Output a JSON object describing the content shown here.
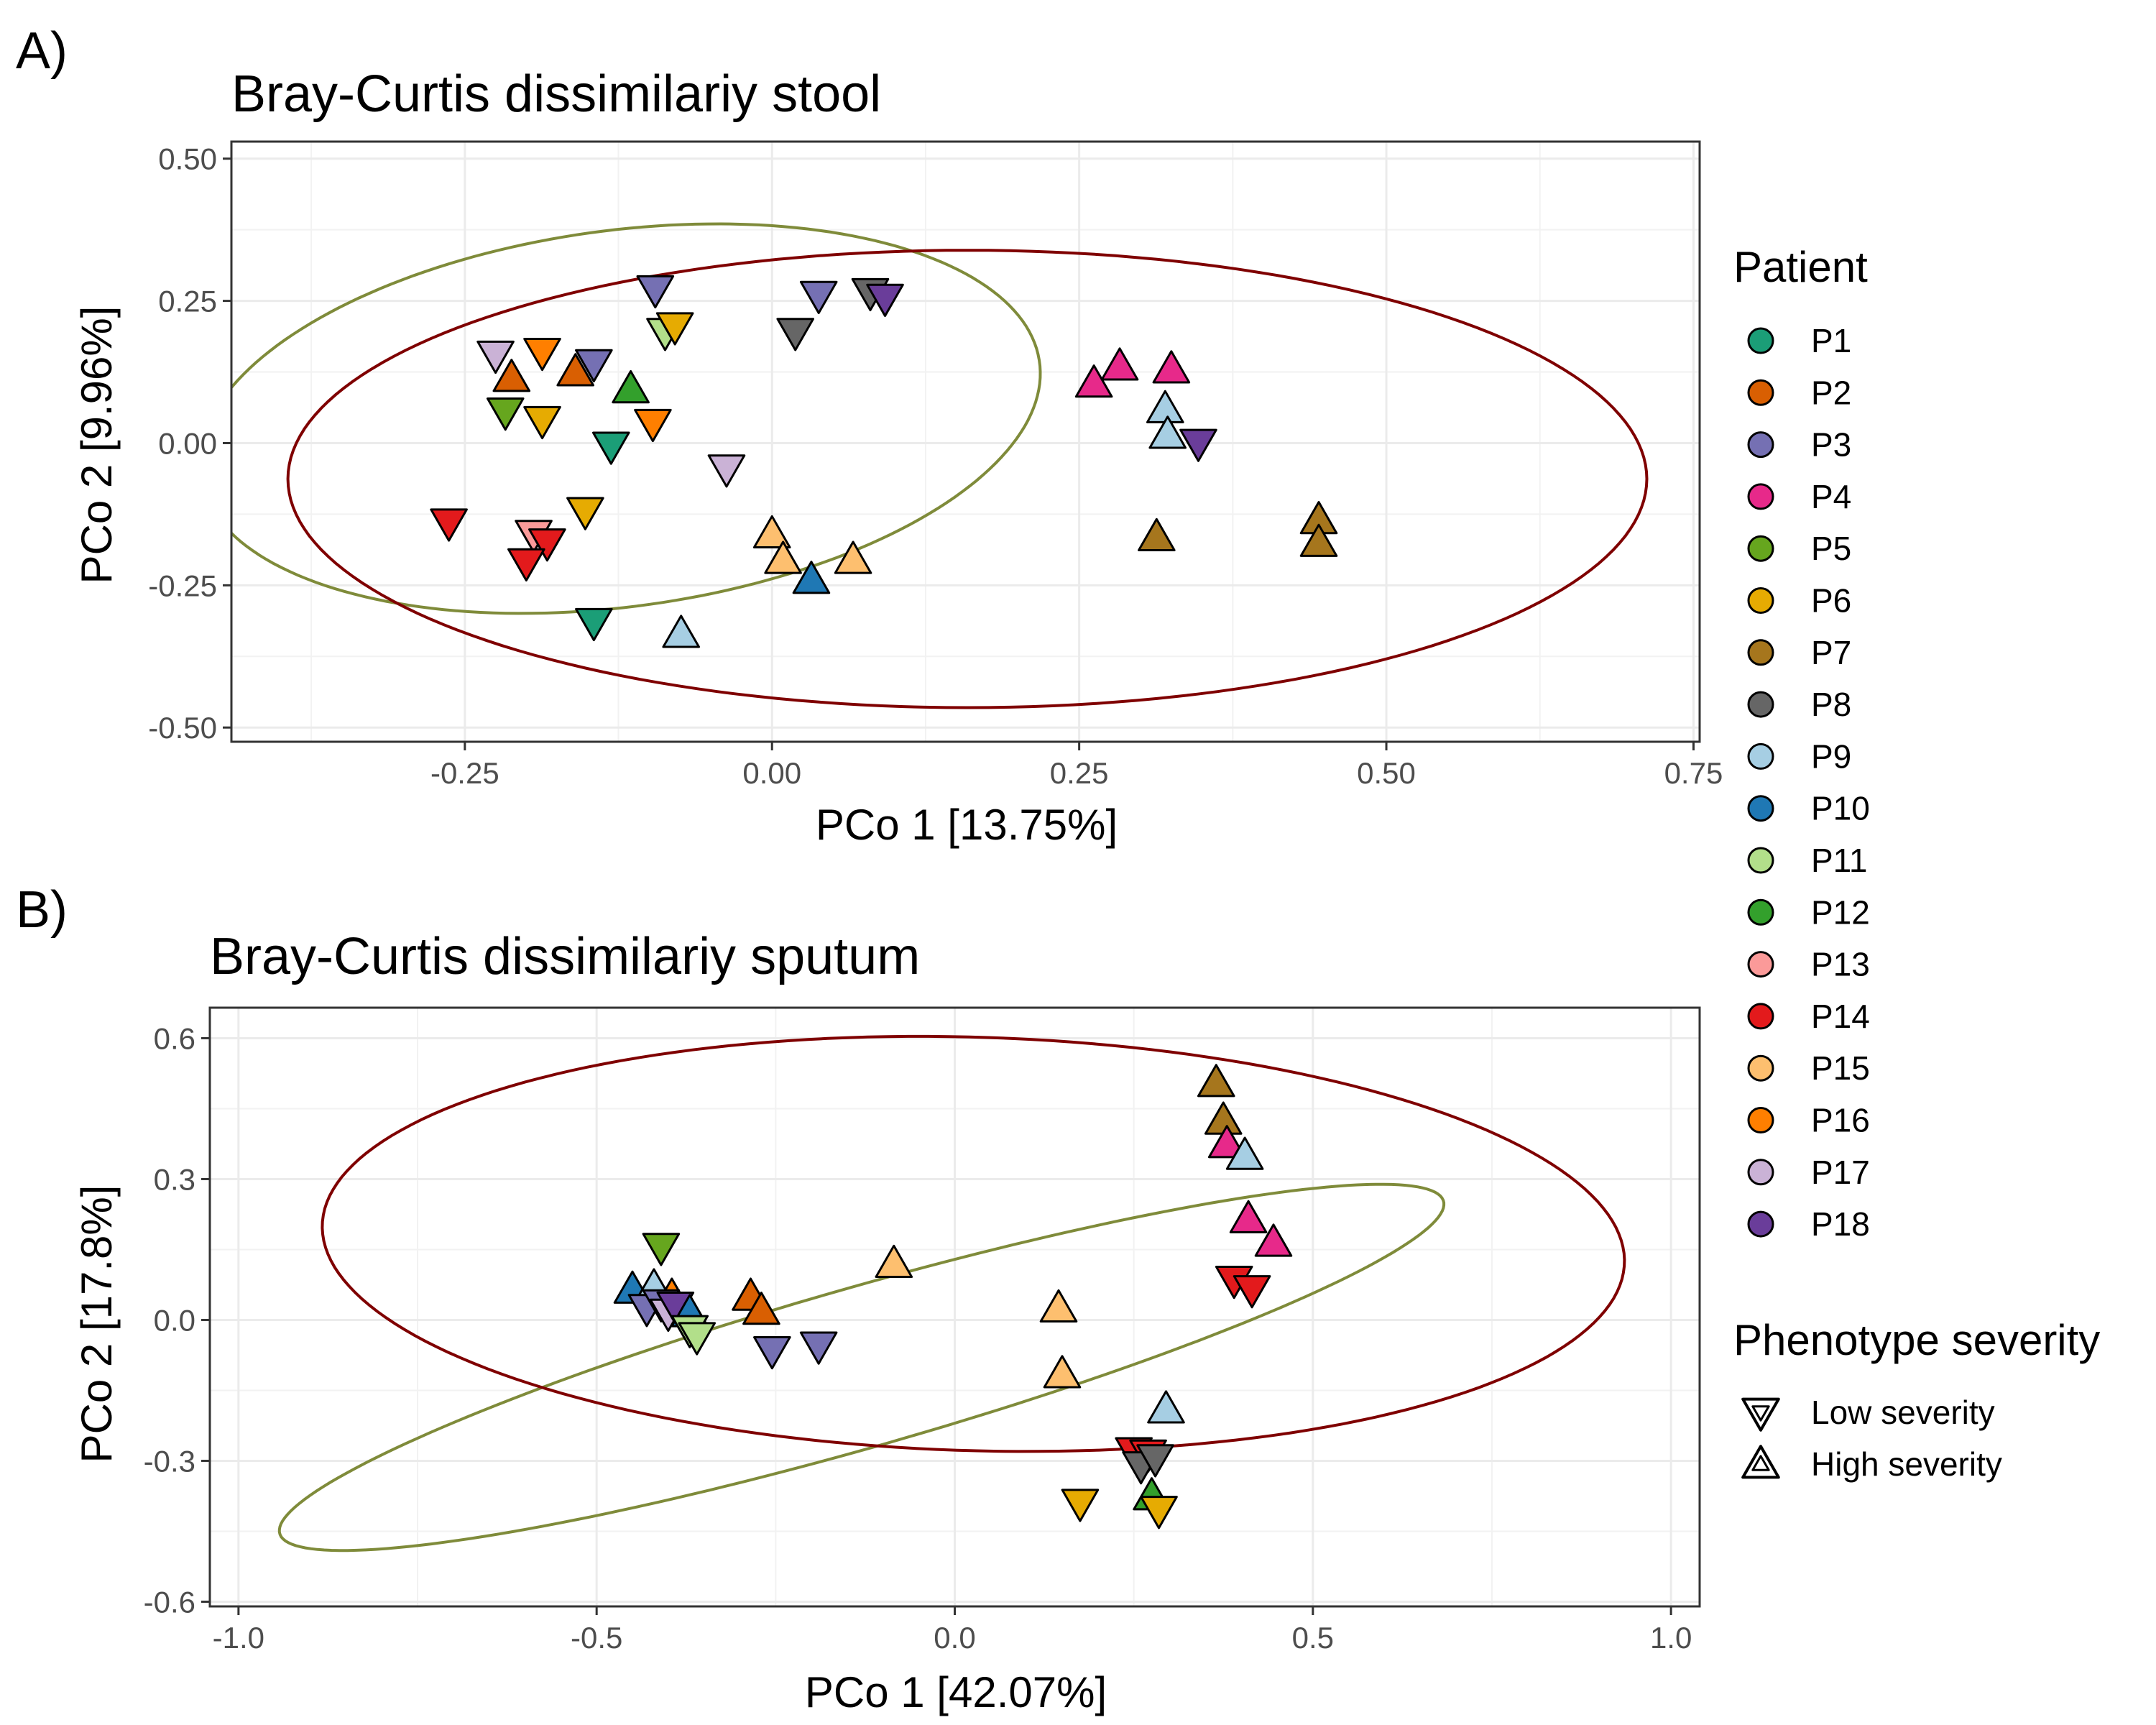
{
  "legend": {
    "patient_title": "Patient",
    "patients": [
      {
        "label": "P1",
        "color": "#1b9e77"
      },
      {
        "label": "P2",
        "color": "#d95f02"
      },
      {
        "label": "P3",
        "color": "#7570b3"
      },
      {
        "label": "P4",
        "color": "#e7298a"
      },
      {
        "label": "P5",
        "color": "#66a61e"
      },
      {
        "label": "P6",
        "color": "#e6ab02"
      },
      {
        "label": "P7",
        "color": "#a6761d"
      },
      {
        "label": "P8",
        "color": "#666666"
      },
      {
        "label": "P9",
        "color": "#a6cee3"
      },
      {
        "label": "P10",
        "color": "#1f78b4"
      },
      {
        "label": "P11",
        "color": "#b2df8a"
      },
      {
        "label": "P12",
        "color": "#33a02c"
      },
      {
        "label": "P13",
        "color": "#fb9a99"
      },
      {
        "label": "P14",
        "color": "#e31a1c"
      },
      {
        "label": "P15",
        "color": "#fdbf6f"
      },
      {
        "label": "P16",
        "color": "#ff7f00"
      },
      {
        "label": "P17",
        "color": "#cab2d6"
      },
      {
        "label": "P18",
        "color": "#6a3d9a"
      }
    ],
    "severity_title": "Phenotype severity",
    "severity": [
      {
        "label": "Low severity",
        "shape": "triangle-down"
      },
      {
        "label": "High severity",
        "shape": "triangle-up"
      }
    ]
  },
  "ellipse_colors": {
    "low": "#7f8b3a",
    "high": "#7f0000"
  },
  "chart_data": [
    {
      "type": "scatter",
      "panel_label": "A)",
      "title": "Bray-Curtis dissimilariy stool",
      "xlabel": "PCo 1 [13.75%]",
      "ylabel": "PCo 2 [9.96%]",
      "xlim": [
        -0.44,
        0.755
      ],
      "ylim": [
        -0.525,
        0.53
      ],
      "xticks": [
        -0.25,
        0.0,
        0.25,
        0.5,
        0.75
      ],
      "xtick_labels": [
        "-0.25",
        "0.00",
        "0.25",
        "0.50",
        "0.75"
      ],
      "yticks": [
        -0.5,
        -0.25,
        0.0,
        0.25,
        0.5
      ],
      "ytick_labels": [
        "-0.50",
        "-0.25",
        "0.00",
        "0.25",
        "0.50"
      ],
      "grid": true,
      "ellipses": [
        {
          "group": "Low severity",
          "cx": -0.124,
          "cy": 0.043,
          "rx": 0.3,
          "ry": 0.38,
          "angle_deg": -45
        },
        {
          "group": "High severity",
          "cx": 0.159,
          "cy": -0.063,
          "rx": 0.553,
          "ry": 0.402,
          "angle_deg": 0
        }
      ],
      "points": [
        {
          "patient": "P17",
          "severity": "low",
          "x": -0.225,
          "y": 0.155
        },
        {
          "patient": "P2",
          "severity": "high",
          "x": -0.212,
          "y": 0.115
        },
        {
          "patient": "P16",
          "severity": "low",
          "x": -0.187,
          "y": 0.16
        },
        {
          "patient": "P2",
          "severity": "high",
          "x": -0.16,
          "y": 0.125
        },
        {
          "patient": "P3",
          "severity": "low",
          "x": -0.145,
          "y": 0.14
        },
        {
          "patient": "P5",
          "severity": "low",
          "x": -0.217,
          "y": 0.055
        },
        {
          "patient": "P6",
          "severity": "low",
          "x": -0.187,
          "y": 0.04
        },
        {
          "patient": "P12",
          "severity": "high",
          "x": -0.115,
          "y": 0.095
        },
        {
          "patient": "P16",
          "severity": "low",
          "x": -0.097,
          "y": 0.035
        },
        {
          "patient": "P1",
          "severity": "low",
          "x": -0.131,
          "y": -0.005
        },
        {
          "patient": "P3",
          "severity": "low",
          "x": -0.095,
          "y": 0.27
        },
        {
          "patient": "P11",
          "severity": "low",
          "x": -0.087,
          "y": 0.195
        },
        {
          "patient": "P6",
          "severity": "low",
          "x": -0.079,
          "y": 0.205
        },
        {
          "patient": "P17",
          "severity": "low",
          "x": -0.037,
          "y": -0.045
        },
        {
          "patient": "P8",
          "severity": "low",
          "x": 0.019,
          "y": 0.195
        },
        {
          "patient": "P3",
          "severity": "low",
          "x": 0.038,
          "y": 0.26
        },
        {
          "patient": "P8",
          "severity": "low",
          "x": 0.08,
          "y": 0.265
        },
        {
          "patient": "P18",
          "severity": "low",
          "x": 0.092,
          "y": 0.255
        },
        {
          "patient": "P14",
          "severity": "low",
          "x": -0.263,
          "y": -0.14
        },
        {
          "patient": "P13",
          "severity": "low",
          "x": -0.194,
          "y": -0.16
        },
        {
          "patient": "P14",
          "severity": "low",
          "x": -0.183,
          "y": -0.175
        },
        {
          "patient": "P14",
          "severity": "low",
          "x": -0.2,
          "y": -0.21
        },
        {
          "patient": "P6",
          "severity": "low",
          "x": -0.152,
          "y": -0.12
        },
        {
          "patient": "P1",
          "severity": "low",
          "x": -0.145,
          "y": -0.315
        },
        {
          "patient": "P9",
          "severity": "high",
          "x": -0.074,
          "y": -0.335
        },
        {
          "patient": "P15",
          "severity": "high",
          "x": 0.0,
          "y": -0.16
        },
        {
          "patient": "P15",
          "severity": "high",
          "x": 0.009,
          "y": -0.205
        },
        {
          "patient": "P10",
          "severity": "high",
          "x": 0.032,
          "y": -0.24
        },
        {
          "patient": "P15",
          "severity": "high",
          "x": 0.066,
          "y": -0.205
        },
        {
          "patient": "P4",
          "severity": "high",
          "x": 0.262,
          "y": 0.105
        },
        {
          "patient": "P4",
          "severity": "high",
          "x": 0.283,
          "y": 0.135
        },
        {
          "patient": "P4",
          "severity": "high",
          "x": 0.325,
          "y": 0.13
        },
        {
          "patient": "P9",
          "severity": "high",
          "x": 0.32,
          "y": 0.06
        },
        {
          "patient": "P9",
          "severity": "high",
          "x": 0.322,
          "y": 0.015
        },
        {
          "patient": "P18",
          "severity": "low",
          "x": 0.347,
          "y": 0.0
        },
        {
          "patient": "P7",
          "severity": "high",
          "x": 0.313,
          "y": -0.165
        },
        {
          "patient": "P7",
          "severity": "high",
          "x": 0.445,
          "y": -0.135
        },
        {
          "patient": "P7",
          "severity": "high",
          "x": 0.445,
          "y": -0.175
        }
      ]
    },
    {
      "type": "scatter",
      "panel_label": "B)",
      "title": "Bray-Curtis dissimilariy sputum",
      "xlabel": "PCo 1 [42.07%]",
      "ylabel": "PCo 2 [17.8%]",
      "xlim": [
        -1.04,
        1.04
      ],
      "ylim": [
        -0.61,
        0.665
      ],
      "xticks": [
        -1.0,
        -0.5,
        0.0,
        0.5,
        1.0
      ],
      "xtick_labels": [
        "-1.0",
        "-0.5",
        "0.0",
        "0.5",
        "1.0"
      ],
      "yticks": [
        -0.6,
        -0.3,
        0.0,
        0.3,
        0.6
      ],
      "ytick_labels": [
        "-0.6",
        "-0.3",
        "0.0",
        "0.3",
        "0.6"
      ],
      "grid": true,
      "ellipses": [
        {
          "group": "Low severity",
          "cx": -0.13,
          "cy": -0.101,
          "rx": 0.887,
          "ry": 0.162,
          "angle_deg": 24
        },
        {
          "group": "High severity",
          "cx": 0.026,
          "cy": 0.162,
          "rx": 0.91,
          "ry": 0.44,
          "angle_deg": -3
        }
      ],
      "points": [
        {
          "patient": "P10",
          "severity": "high",
          "x": -0.45,
          "y": 0.065
        },
        {
          "patient": "P9",
          "severity": "high",
          "x": -0.42,
          "y": 0.07
        },
        {
          "patient": "P5",
          "severity": "low",
          "x": -0.41,
          "y": 0.155
        },
        {
          "patient": "P16",
          "severity": "high",
          "x": -0.395,
          "y": 0.05
        },
        {
          "patient": "P3",
          "severity": "low",
          "x": -0.43,
          "y": 0.025
        },
        {
          "patient": "P3",
          "severity": "low",
          "x": -0.41,
          "y": 0.035
        },
        {
          "patient": "P17",
          "severity": "low",
          "x": -0.4,
          "y": 0.015
        },
        {
          "patient": "P18",
          "severity": "low",
          "x": -0.39,
          "y": 0.03
        },
        {
          "patient": "P10",
          "severity": "high",
          "x": -0.37,
          "y": 0.015
        },
        {
          "patient": "P11",
          "severity": "low",
          "x": -0.37,
          "y": -0.02
        },
        {
          "patient": "P11",
          "severity": "low",
          "x": -0.36,
          "y": -0.035
        },
        {
          "patient": "P2",
          "severity": "high",
          "x": -0.285,
          "y": 0.05
        },
        {
          "patient": "P2",
          "severity": "high",
          "x": -0.27,
          "y": 0.02
        },
        {
          "patient": "P3",
          "severity": "low",
          "x": -0.255,
          "y": -0.065
        },
        {
          "patient": "P3",
          "severity": "low",
          "x": -0.19,
          "y": -0.055
        },
        {
          "patient": "P15",
          "severity": "high",
          "x": -0.085,
          "y": 0.12
        },
        {
          "patient": "P15",
          "severity": "high",
          "x": 0.145,
          "y": 0.025
        },
        {
          "patient": "P15",
          "severity": "high",
          "x": 0.15,
          "y": -0.115
        },
        {
          "patient": "P6",
          "severity": "low",
          "x": 0.175,
          "y": -0.39
        },
        {
          "patient": "P14",
          "severity": "low",
          "x": 0.25,
          "y": -0.28
        },
        {
          "patient": "P14",
          "severity": "low",
          "x": 0.27,
          "y": -0.285
        },
        {
          "patient": "P8",
          "severity": "low",
          "x": 0.26,
          "y": -0.31
        },
        {
          "patient": "P8",
          "severity": "low",
          "x": 0.28,
          "y": -0.295
        },
        {
          "patient": "P12",
          "severity": "high",
          "x": 0.275,
          "y": -0.375
        },
        {
          "patient": "P6",
          "severity": "low",
          "x": 0.285,
          "y": -0.405
        },
        {
          "patient": "P9",
          "severity": "high",
          "x": 0.295,
          "y": -0.19
        },
        {
          "patient": "P7",
          "severity": "high",
          "x": 0.365,
          "y": 0.505
        },
        {
          "patient": "P7",
          "severity": "high",
          "x": 0.375,
          "y": 0.425
        },
        {
          "patient": "P4",
          "severity": "high",
          "x": 0.38,
          "y": 0.375
        },
        {
          "patient": "P9",
          "severity": "high",
          "x": 0.405,
          "y": 0.35
        },
        {
          "patient": "P4",
          "severity": "high",
          "x": 0.41,
          "y": 0.215
        },
        {
          "patient": "P4",
          "severity": "high",
          "x": 0.445,
          "y": 0.165
        },
        {
          "patient": "P14",
          "severity": "low",
          "x": 0.39,
          "y": 0.085
        },
        {
          "patient": "P14",
          "severity": "low",
          "x": 0.415,
          "y": 0.065
        }
      ]
    }
  ]
}
